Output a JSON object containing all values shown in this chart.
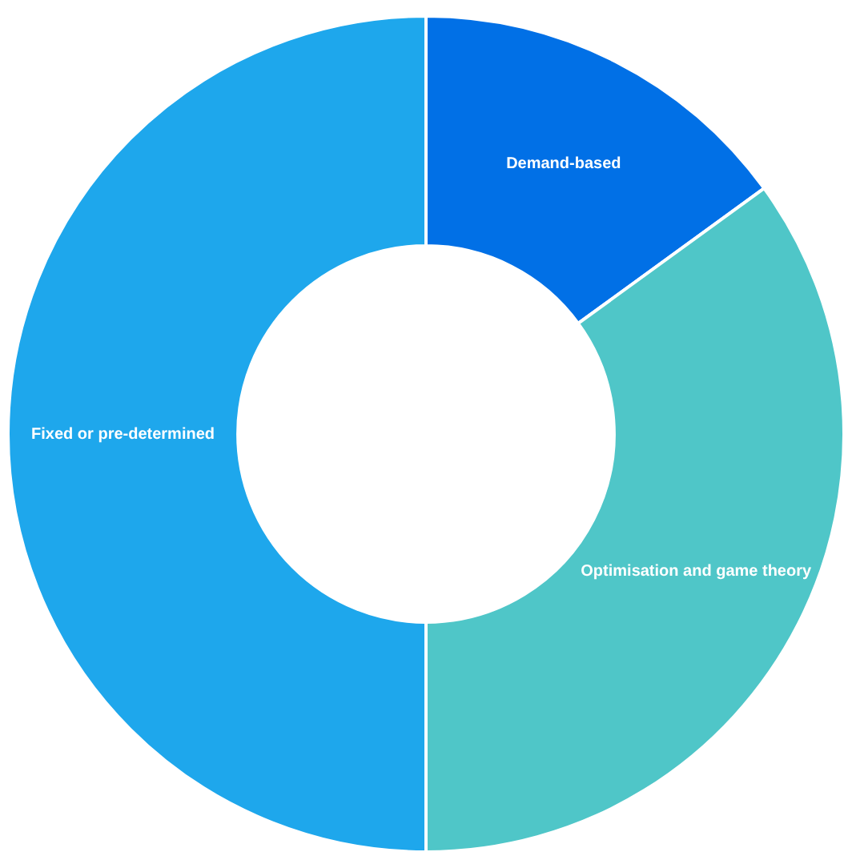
{
  "chart_data": {
    "type": "donut",
    "categories": [
      "Demand-based",
      "Optimisation and game theory",
      "Fixed or pre-determined"
    ],
    "values": [
      15,
      35,
      50
    ],
    "colors": [
      "#0170e6",
      "#4fc6c8",
      "#1ea7ec"
    ]
  }
}
